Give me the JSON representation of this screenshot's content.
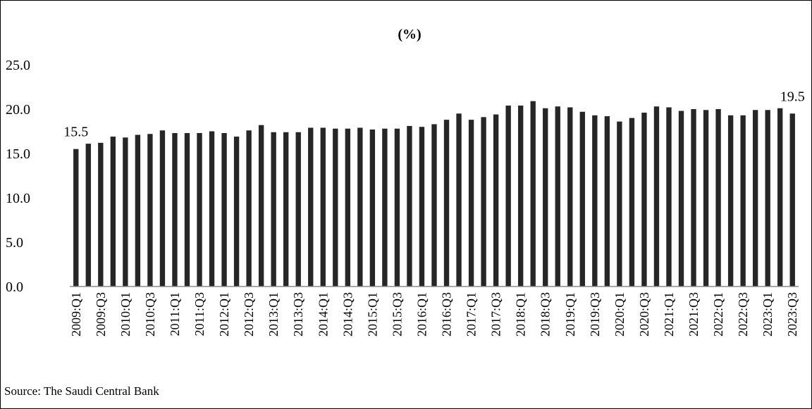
{
  "source": "Source: The Saudi Central Bank",
  "chart_data": {
    "type": "bar",
    "title": "(%)",
    "xlabel": "",
    "ylabel": "",
    "ylim": [
      0,
      25
    ],
    "yticks": [
      "0.0",
      "5.0",
      "10.0",
      "15.0",
      "20.0",
      "25.0"
    ],
    "grid": false,
    "legend": "none",
    "bar_color": "#262626",
    "categories": [
      "2009:Q1",
      "2009:Q2",
      "2009:Q3",
      "2009:Q4",
      "2010:Q1",
      "2010:Q2",
      "2010:Q3",
      "2010:Q4",
      "2011:Q1",
      "2011:Q2",
      "2011:Q3",
      "2011:Q4",
      "2012:Q1",
      "2012:Q2",
      "2012:Q3",
      "2012:Q4",
      "2013:Q1",
      "2013:Q2",
      "2013:Q3",
      "2013:Q4",
      "2014:Q1",
      "2014:Q2",
      "2014:Q3",
      "2014:Q4",
      "2015:Q1",
      "2015:Q2",
      "2015:Q3",
      "2015:Q4",
      "2016:Q1",
      "2016:Q2",
      "2016:Q3",
      "2016:Q4",
      "2017:Q1",
      "2017:Q2",
      "2017:Q3",
      "2017:Q4",
      "2018:Q1",
      "2018:Q2",
      "2018:Q3",
      "2018:Q4",
      "2019:Q1",
      "2019:Q2",
      "2019:Q3",
      "2019:Q4",
      "2020:Q1",
      "2020:Q2",
      "2020:Q3",
      "2020:Q4",
      "2021:Q1",
      "2021:Q2",
      "2021:Q3",
      "2021:Q4",
      "2022:Q1",
      "2022:Q2",
      "2022:Q3",
      "2022:Q4",
      "2023:Q1",
      "2023:Q2",
      "2023:Q3"
    ],
    "xtick_labels_shown": [
      "2009:Q1",
      "2009:Q3",
      "2010:Q1",
      "2010:Q3",
      "2011:Q1",
      "2011:Q3",
      "2012:Q1",
      "2012:Q3",
      "2013:Q1",
      "2013:Q3",
      "2014:Q1",
      "2014:Q3",
      "2015:Q1",
      "2015:Q3",
      "2016:Q1",
      "2016:Q3",
      "2017:Q1",
      "2017:Q3",
      "2018:Q1",
      "2018:Q3",
      "2019:Q1",
      "2019:Q3",
      "2020:Q1",
      "2020:Q3",
      "2021:Q1",
      "2021:Q3",
      "2022:Q1",
      "2022:Q3",
      "2023:Q1",
      "2023:Q3"
    ],
    "values": [
      15.5,
      16.1,
      16.2,
      16.9,
      16.8,
      17.1,
      17.2,
      17.6,
      17.3,
      17.3,
      17.3,
      17.5,
      17.3,
      16.9,
      17.6,
      18.2,
      17.4,
      17.4,
      17.4,
      17.9,
      17.9,
      17.8,
      17.8,
      17.9,
      17.7,
      17.8,
      17.8,
      18.1,
      18.0,
      18.3,
      18.8,
      19.5,
      18.8,
      19.1,
      19.4,
      20.4,
      20.4,
      20.9,
      20.1,
      20.3,
      20.2,
      19.7,
      19.3,
      19.2,
      18.6,
      19.0,
      19.6,
      20.3,
      20.2,
      19.8,
      20.0,
      19.9,
      20.0,
      19.3,
      19.3,
      19.9,
      19.9,
      20.1,
      19.5
    ],
    "data_labels": [
      {
        "category": "2009:Q1",
        "text": "15.5"
      },
      {
        "category": "2023:Q3",
        "text": "19.5"
      }
    ]
  }
}
